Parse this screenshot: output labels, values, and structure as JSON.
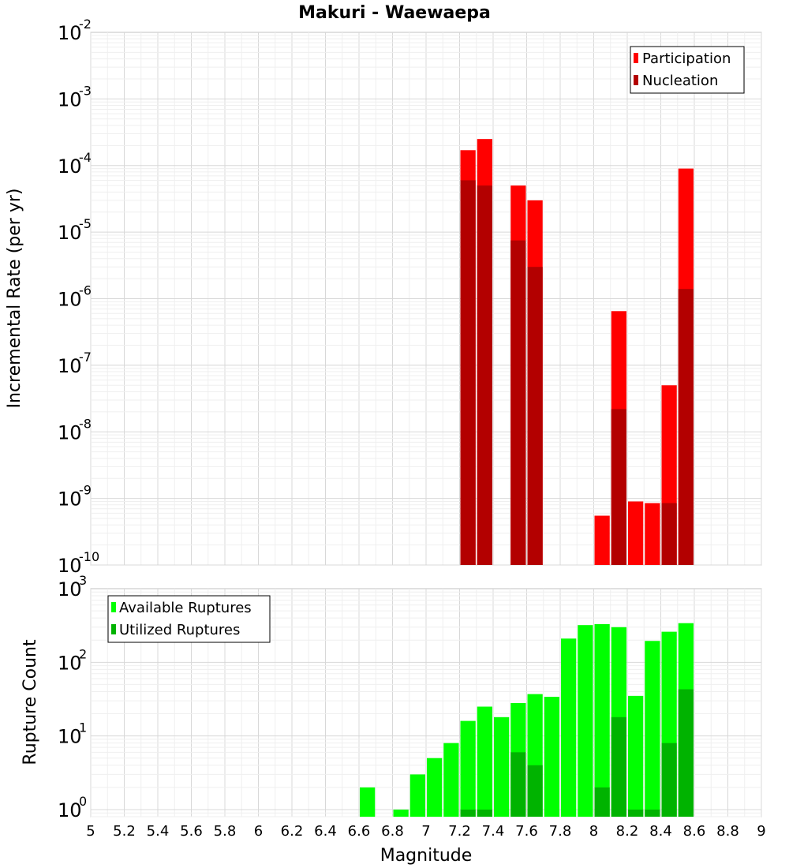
{
  "chart_data": [
    {
      "type": "bar",
      "title": "Makuri - Waewaepa",
      "xlabel": "Magnitude",
      "ylabel": "Incremental Rate (per yr)",
      "yscale": "log",
      "ylim": [
        1e-10,
        0.01
      ],
      "xlim": [
        5,
        9
      ],
      "bin_width": 0.1,
      "legend_position": "top-right",
      "y_tick_labels": [
        {
          "base": "10",
          "exp": "-10"
        },
        {
          "base": "10",
          "exp": "-9"
        },
        {
          "base": "10",
          "exp": "-8"
        },
        {
          "base": "10",
          "exp": "-7"
        },
        {
          "base": "10",
          "exp": "-6"
        },
        {
          "base": "10",
          "exp": "-5"
        },
        {
          "base": "10",
          "exp": "-4"
        },
        {
          "base": "10",
          "exp": "-3"
        },
        {
          "base": "10",
          "exp": "-2"
        }
      ],
      "series": [
        {
          "name": "Participation",
          "color": "#ff0000",
          "x": [
            7.25,
            7.35,
            7.55,
            7.65,
            8.05,
            8.15,
            8.25,
            8.35,
            8.45,
            8.55
          ],
          "values": [
            0.00017,
            0.00025,
            5e-05,
            3e-05,
            5.5e-10,
            6.5e-07,
            9e-10,
            8.5e-10,
            5e-08,
            9e-05
          ]
        },
        {
          "name": "Nucleation",
          "color": "#b30000",
          "x": [
            7.25,
            7.35,
            7.55,
            7.65,
            8.15,
            8.45,
            8.55
          ],
          "values": [
            6e-05,
            5e-05,
            7.5e-06,
            3e-06,
            2.2e-08,
            8.5e-10,
            1.4e-06
          ]
        }
      ]
    },
    {
      "type": "bar",
      "title": "",
      "xlabel": "Magnitude",
      "ylabel": "Rupture Count",
      "yscale": "log",
      "ylim": [
        0.8,
        1000
      ],
      "xlim": [
        5,
        9
      ],
      "bin_width": 0.1,
      "legend_position": "top-left",
      "x_tick_labels": [
        "5",
        "5.2",
        "5.4",
        "5.6",
        "5.8",
        "6",
        "6.2",
        "6.4",
        "6.6",
        "6.8",
        "7",
        "7.2",
        "7.4",
        "7.6",
        "7.8",
        "8",
        "8.2",
        "8.4",
        "8.6",
        "8.8",
        "9"
      ],
      "y_tick_labels": [
        {
          "base": "10",
          "exp": "0"
        },
        {
          "base": "10",
          "exp": "1"
        },
        {
          "base": "10",
          "exp": "2"
        },
        {
          "base": "10",
          "exp": "3"
        }
      ],
      "series": [
        {
          "name": "Available Ruptures",
          "color": "#00ff00",
          "x": [
            6.65,
            6.85,
            6.95,
            7.05,
            7.15,
            7.25,
            7.35,
            7.45,
            7.55,
            7.65,
            7.75,
            7.85,
            7.95,
            8.05,
            8.15,
            8.25,
            8.35,
            8.45,
            8.55
          ],
          "values": [
            2,
            1,
            3,
            5,
            8,
            16,
            25,
            18,
            28,
            37,
            34,
            210,
            320,
            330,
            300,
            35,
            195,
            260,
            340
          ]
        },
        {
          "name": "Utilized Ruptures",
          "color": "#00b300",
          "x": [
            7.25,
            7.35,
            7.55,
            7.65,
            8.05,
            8.15,
            8.25,
            8.35,
            8.45,
            8.55
          ],
          "values": [
            1,
            1,
            6,
            4,
            2,
            18,
            1,
            1,
            8,
            43
          ]
        }
      ]
    }
  ]
}
